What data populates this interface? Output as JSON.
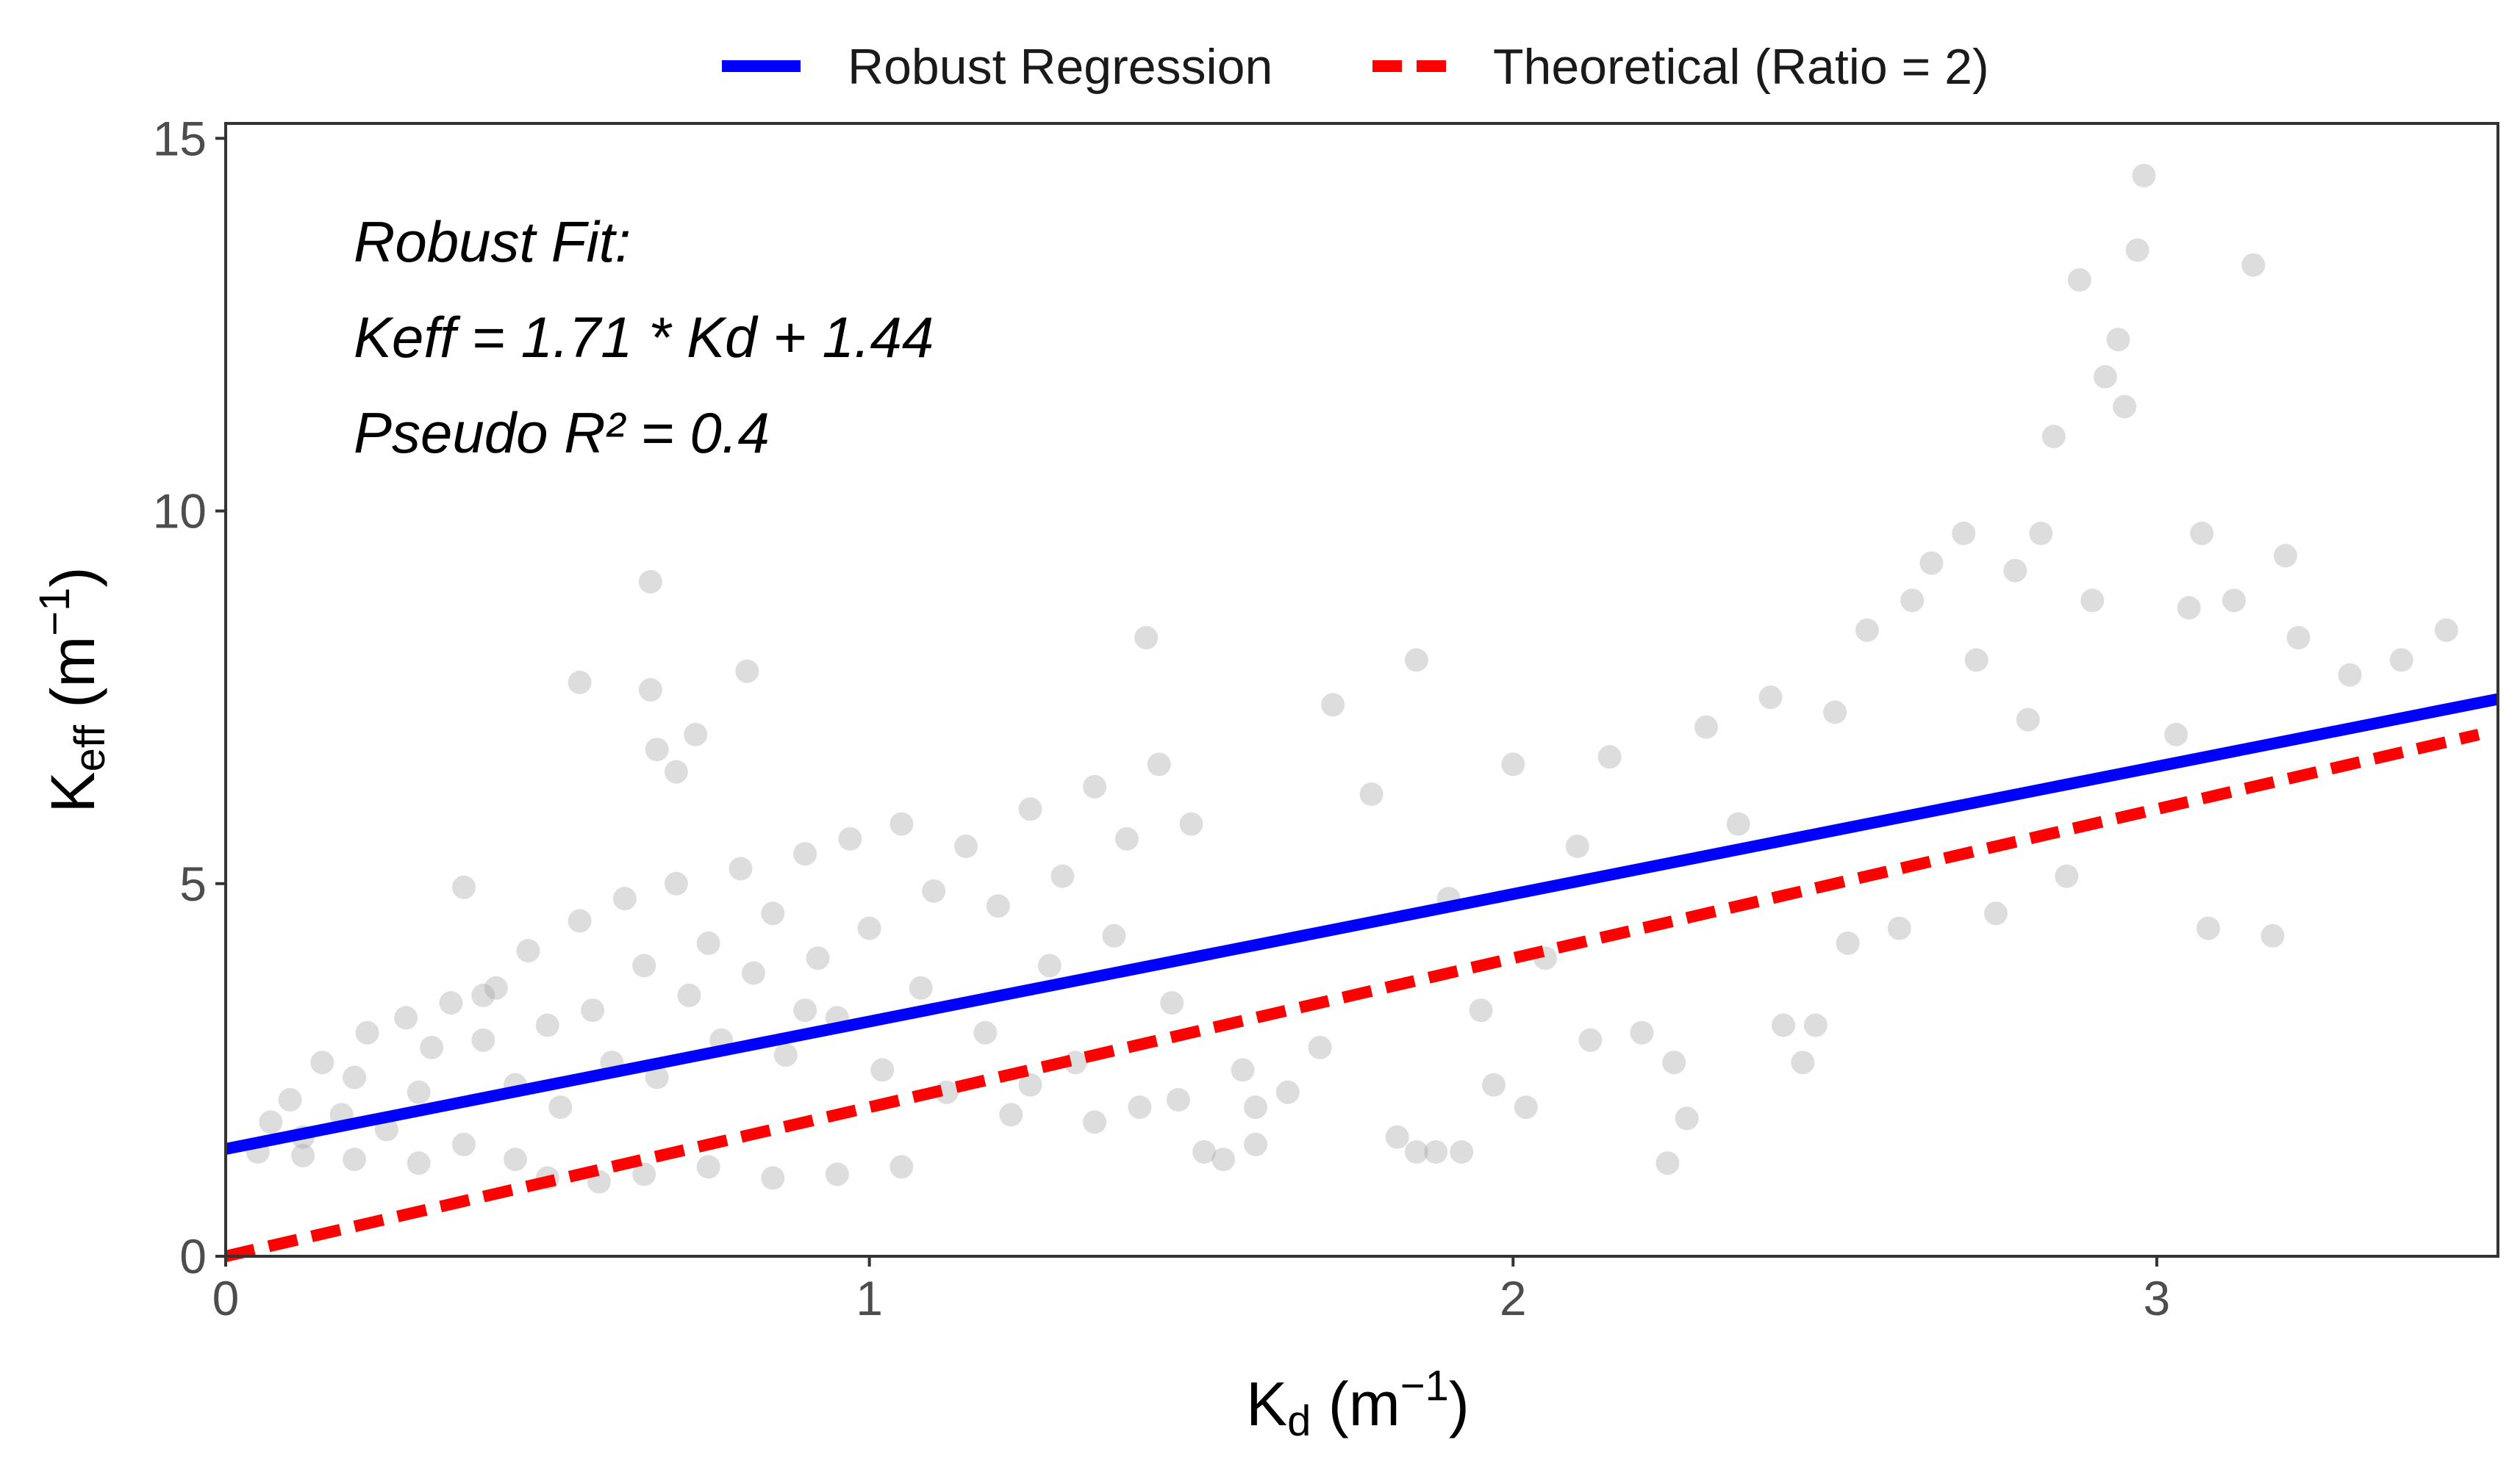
{
  "chart_data": {
    "type": "scatter",
    "xlabel": {
      "main": "K",
      "sub": "d",
      "unit_open": " (m",
      "unit_sup": "−1",
      "unit_close": ")"
    },
    "ylabel": {
      "main": "K",
      "sub": "eff",
      "unit_open": " (m",
      "unit_sup": "−1",
      "unit_close": ")"
    },
    "xlim": [
      0,
      3.53
    ],
    "ylim": [
      0,
      15.2
    ],
    "x_ticks": [
      0,
      1,
      2,
      3
    ],
    "y_ticks": [
      0,
      5,
      10,
      15
    ],
    "grid": false,
    "legend_position": "top",
    "legend": [
      {
        "label": "Robust Regression",
        "color": "#0000ff",
        "style": "solid"
      },
      {
        "label": "Theoretical (Ratio = 2)",
        "color": "#ff0000",
        "style": "dashed"
      }
    ],
    "annotations": [
      "Robust Fit:",
      "Keff = 1.71 * Kd + 1.44",
      "Pseudo R² = 0.4"
    ],
    "lines": [
      {
        "name": "Robust Regression",
        "slope": 1.71,
        "intercept": 1.44,
        "x_range": [
          0,
          3.53
        ],
        "color": "#0000ff"
      },
      {
        "name": "Theoretical (Ratio = 2)",
        "slope": 2,
        "intercept": 0,
        "x_range": [
          0,
          3.5
        ],
        "color": "#ff0000"
      }
    ],
    "point_color": "#9e9e9e",
    "point_opacity": 0.35,
    "series": [
      {
        "name": "Observations",
        "points": [
          [
            0.05,
            1.4
          ],
          [
            0.07,
            1.8
          ],
          [
            0.1,
            2.1
          ],
          [
            0.12,
            1.6
          ],
          [
            0.15,
            2.6
          ],
          [
            0.18,
            1.9
          ],
          [
            0.2,
            2.4
          ],
          [
            0.22,
            3.0
          ],
          [
            0.25,
            1.7
          ],
          [
            0.28,
            3.2
          ],
          [
            0.3,
            2.2
          ],
          [
            0.32,
            2.8
          ],
          [
            0.35,
            3.4
          ],
          [
            0.37,
            1.5
          ],
          [
            0.4,
            2.9
          ],
          [
            0.42,
            3.6
          ],
          [
            0.45,
            2.3
          ],
          [
            0.47,
            4.1
          ],
          [
            0.5,
            3.1
          ],
          [
            0.52,
            2.0
          ],
          [
            0.55,
            4.5
          ],
          [
            0.57,
            3.3
          ],
          [
            0.6,
            2.6
          ],
          [
            0.62,
            4.8
          ],
          [
            0.65,
            3.9
          ],
          [
            0.67,
            2.4
          ],
          [
            0.7,
            5.0
          ],
          [
            0.72,
            3.5
          ],
          [
            0.75,
            4.2
          ],
          [
            0.77,
            2.9
          ],
          [
            0.8,
            5.2
          ],
          [
            0.82,
            3.8
          ],
          [
            0.85,
            4.6
          ],
          [
            0.87,
            2.7
          ],
          [
            0.9,
            5.4
          ],
          [
            0.92,
            4.0
          ],
          [
            0.95,
            3.2
          ],
          [
            0.97,
            5.6
          ],
          [
            1.0,
            4.4
          ],
          [
            1.02,
            2.5
          ],
          [
            1.05,
            5.8
          ],
          [
            1.08,
            3.6
          ],
          [
            1.1,
            4.9
          ],
          [
            1.12,
            2.2
          ],
          [
            1.15,
            5.5
          ],
          [
            1.18,
            3.0
          ],
          [
            1.2,
            4.7
          ],
          [
            1.22,
            1.9
          ],
          [
            1.25,
            6.0
          ],
          [
            1.28,
            3.9
          ],
          [
            1.3,
            5.1
          ],
          [
            1.32,
            2.6
          ],
          [
            1.35,
            6.3
          ],
          [
            1.38,
            4.3
          ],
          [
            1.4,
            5.6
          ],
          [
            1.42,
            2.0
          ],
          [
            1.45,
            6.6
          ],
          [
            1.47,
            3.4
          ],
          [
            1.5,
            5.8
          ],
          [
            1.52,
            1.4
          ],
          [
            0.66,
            9.05
          ],
          [
            0.37,
            4.95
          ],
          [
            0.55,
            7.7
          ],
          [
            0.66,
            7.6
          ],
          [
            0.67,
            6.8
          ],
          [
            0.73,
            7.0
          ],
          [
            0.81,
            7.85
          ],
          [
            0.7,
            6.5
          ],
          [
            0.4,
            3.5
          ],
          [
            0.45,
            1.3
          ],
          [
            1.43,
            8.3
          ],
          [
            1.6,
            2.0
          ],
          [
            1.72,
            7.4
          ],
          [
            1.78,
            6.2
          ],
          [
            1.85,
            8.0
          ],
          [
            1.9,
            4.8
          ],
          [
            1.95,
            3.3
          ],
          [
            2.0,
            6.6
          ],
          [
            2.02,
            2.0
          ],
          [
            2.05,
            4.0
          ],
          [
            2.1,
            5.5
          ],
          [
            2.15,
            6.7
          ],
          [
            2.2,
            3.0
          ],
          [
            2.25,
            2.6
          ],
          [
            2.27,
            1.85
          ],
          [
            2.3,
            7.1
          ],
          [
            2.35,
            5.8
          ],
          [
            2.4,
            7.5
          ],
          [
            2.42,
            3.1
          ],
          [
            2.45,
            2.6
          ],
          [
            2.47,
            3.1
          ],
          [
            2.5,
            7.3
          ],
          [
            2.52,
            4.2
          ],
          [
            2.55,
            8.4
          ],
          [
            2.6,
            4.4
          ],
          [
            2.62,
            8.8
          ],
          [
            2.65,
            9.3
          ],
          [
            2.7,
            9.7
          ],
          [
            2.72,
            8.0
          ],
          [
            2.75,
            4.6
          ],
          [
            2.78,
            9.2
          ],
          [
            2.8,
            7.2
          ],
          [
            2.82,
            9.7
          ],
          [
            2.84,
            11.0
          ],
          [
            2.86,
            5.1
          ],
          [
            2.88,
            13.1
          ],
          [
            2.9,
            8.8
          ],
          [
            2.92,
            11.8
          ],
          [
            2.94,
            12.3
          ],
          [
            2.95,
            11.4
          ],
          [
            2.97,
            13.5
          ],
          [
            2.98,
            14.5
          ],
          [
            3.03,
            7.0
          ],
          [
            3.05,
            8.7
          ],
          [
            3.07,
            9.7
          ],
          [
            3.08,
            4.4
          ],
          [
            3.12,
            8.8
          ],
          [
            3.15,
            13.3
          ],
          [
            3.18,
            4.3
          ],
          [
            3.2,
            9.4
          ],
          [
            3.22,
            8.3
          ],
          [
            3.3,
            7.8
          ],
          [
            3.38,
            8.0
          ],
          [
            3.45,
            8.4
          ],
          [
            1.85,
            1.4
          ],
          [
            1.88,
            1.4
          ],
          [
            1.92,
            1.4
          ],
          [
            2.24,
            1.25
          ],
          [
            1.55,
            1.3
          ],
          [
            1.6,
            1.5
          ],
          [
            0.95,
            1.1
          ],
          [
            1.05,
            1.2
          ],
          [
            0.85,
            1.05
          ],
          [
            0.75,
            1.2
          ],
          [
            0.65,
            1.1
          ],
          [
            0.58,
            1.0
          ],
          [
            0.5,
            1.05
          ],
          [
            0.3,
            1.25
          ],
          [
            0.2,
            1.3
          ],
          [
            0.12,
            1.35
          ],
          [
            1.25,
            2.3
          ],
          [
            1.35,
            1.8
          ],
          [
            1.48,
            2.1
          ],
          [
            1.58,
            2.5
          ],
          [
            1.65,
            2.2
          ],
          [
            1.7,
            2.8
          ],
          [
            1.82,
            1.6
          ],
          [
            1.97,
            2.3
          ],
          [
            2.12,
            2.9
          ],
          [
            0.9,
            3.3
          ]
        ]
      }
    ]
  }
}
